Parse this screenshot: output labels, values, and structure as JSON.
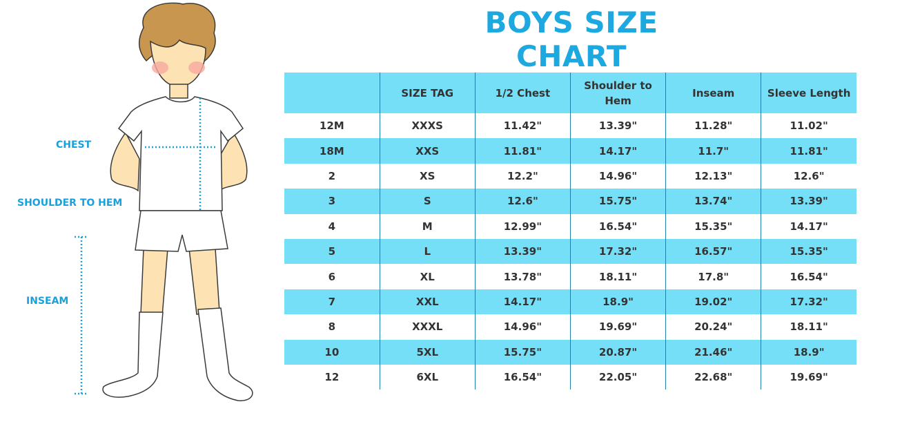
{
  "title": "BOYS SIZE CHART",
  "figure_labels": {
    "chest": "CHEST",
    "shoulder_to_hem": "SHOULDER TO HEM",
    "inseam": "INSEAM"
  },
  "table": {
    "headers": [
      "",
      "SIZE TAG",
      "1/2 Chest",
      "Shoulder to Hem",
      "Inseam",
      "Sleeve Length"
    ],
    "rows": [
      [
        "12M",
        "XXXS",
        "11.42\"",
        "13.39\"",
        "11.28\"",
        "11.02\""
      ],
      [
        "18M",
        "XXS",
        "11.81\"",
        "14.17\"",
        "11.7\"",
        "11.81\""
      ],
      [
        "2",
        "XS",
        "12.2\"",
        "14.96\"",
        "12.13\"",
        "12.6\""
      ],
      [
        "3",
        "S",
        "12.6\"",
        "15.75\"",
        "13.74\"",
        "13.39\""
      ],
      [
        "4",
        "M",
        "12.99\"",
        "16.54\"",
        "15.35\"",
        "14.17\""
      ],
      [
        "5",
        "L",
        "13.39\"",
        "17.32\"",
        "16.57\"",
        "15.35\""
      ],
      [
        "6",
        "XL",
        "13.78\"",
        "18.11\"",
        "17.8\"",
        "16.54\""
      ],
      [
        "7",
        "XXL",
        "14.17\"",
        "18.9\"",
        "19.02\"",
        "17.32\""
      ],
      [
        "8",
        "XXXL",
        "14.96\"",
        "19.69\"",
        "20.24\"",
        "18.11\""
      ],
      [
        "10",
        "5XL",
        "15.75\"",
        "20.87\"",
        "21.46\"",
        "18.9\""
      ],
      [
        "12",
        "6XL",
        "16.54\"",
        "22.05\"",
        "22.68\"",
        "19.69\""
      ]
    ]
  },
  "colors": {
    "accent": "#1da8e0",
    "row_highlight": "#74dff7",
    "text": "#333333"
  }
}
